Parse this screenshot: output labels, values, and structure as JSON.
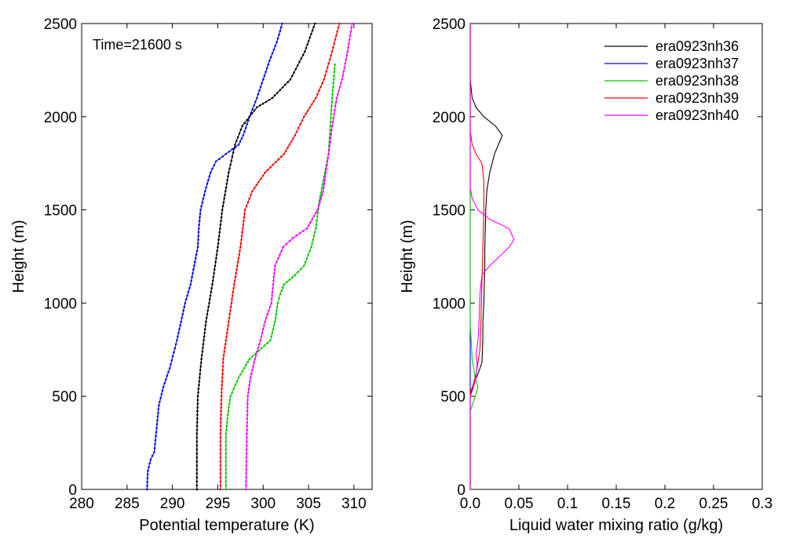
{
  "chart_data": [
    {
      "type": "line",
      "xlabel": "Potential temperature (K)",
      "ylabel": "Height (m)",
      "annotation": "Time=21600 s",
      "xlim": [
        280,
        312
      ],
      "ylim": [
        0,
        2500
      ],
      "xticks": [
        280,
        285,
        290,
        295,
        300,
        305,
        310
      ],
      "yticks": [
        0,
        500,
        1000,
        1500,
        2000,
        2500
      ],
      "markers": true,
      "series": [
        {
          "color": "#0000ff",
          "points": [
            [
              287.2,
              0
            ],
            [
              287.3,
              100
            ],
            [
              287.6,
              160
            ],
            [
              288.0,
              200
            ],
            [
              288.3,
              350
            ],
            [
              288.5,
              450
            ],
            [
              289.0,
              550
            ],
            [
              289.7,
              650
            ],
            [
              290.5,
              800
            ],
            [
              291.4,
              1000
            ],
            [
              292.0,
              1100
            ],
            [
              292.4,
              1200
            ],
            [
              292.8,
              1300
            ],
            [
              292.9,
              1400
            ],
            [
              293.1,
              1500
            ],
            [
              293.6,
              1600
            ],
            [
              294.2,
              1700
            ],
            [
              294.8,
              1760
            ],
            [
              295.9,
              1800
            ],
            [
              297.3,
              1850
            ],
            [
              297.8,
              1900
            ],
            [
              298.5,
              2000
            ],
            [
              299.3,
              2100
            ],
            [
              300.0,
              2200
            ],
            [
              300.7,
              2300
            ],
            [
              301.5,
              2400
            ],
            [
              302.1,
              2500
            ]
          ]
        },
        {
          "color": "#000000",
          "points": [
            [
              292.7,
              0
            ],
            [
              292.7,
              300
            ],
            [
              292.8,
              500
            ],
            [
              293.2,
              700
            ],
            [
              293.7,
              900
            ],
            [
              294.4,
              1100
            ],
            [
              295.0,
              1300
            ],
            [
              295.5,
              1500
            ],
            [
              296.2,
              1700
            ],
            [
              296.9,
              1850
            ],
            [
              297.7,
              1950
            ],
            [
              299.3,
              2050
            ],
            [
              301.0,
              2100
            ],
            [
              303.0,
              2200
            ],
            [
              304.6,
              2350
            ],
            [
              305.7,
              2500
            ]
          ]
        },
        {
          "color": "#ff0000",
          "points": [
            [
              295.3,
              0
            ],
            [
              295.3,
              300
            ],
            [
              295.4,
              500
            ],
            [
              295.6,
              700
            ],
            [
              296.2,
              900
            ],
            [
              296.8,
              1100
            ],
            [
              297.5,
              1300
            ],
            [
              298.0,
              1500
            ],
            [
              298.8,
              1600
            ],
            [
              300.2,
              1700
            ],
            [
              302.3,
              1800
            ],
            [
              303.5,
              1900
            ],
            [
              304.5,
              2000
            ],
            [
              305.8,
              2100
            ],
            [
              306.7,
              2200
            ],
            [
              307.6,
              2350
            ],
            [
              308.4,
              2500
            ]
          ]
        },
        {
          "color": "#00cc00",
          "points": [
            [
              295.9,
              0
            ],
            [
              295.9,
              300
            ],
            [
              296.1,
              400
            ],
            [
              296.4,
              500
            ],
            [
              297.3,
              600
            ],
            [
              298.5,
              700
            ],
            [
              300.8,
              800
            ],
            [
              301.3,
              900
            ],
            [
              301.6,
              1000
            ],
            [
              301.9,
              1050
            ],
            [
              302.3,
              1100
            ],
            [
              303.5,
              1150
            ],
            [
              304.5,
              1200
            ],
            [
              305.3,
              1300
            ],
            [
              305.8,
              1400
            ],
            [
              306.2,
              1550
            ],
            [
              306.8,
              1700
            ],
            [
              307.2,
              1800
            ],
            [
              307.4,
              1950
            ],
            [
              307.6,
              2100
            ],
            [
              307.9,
              2280
            ]
          ]
        },
        {
          "color": "#ff00ff",
          "points": [
            [
              298.1,
              0
            ],
            [
              298.2,
              300
            ],
            [
              298.3,
              500
            ],
            [
              298.6,
              600
            ],
            [
              299.1,
              700
            ],
            [
              299.7,
              800
            ],
            [
              300.2,
              900
            ],
            [
              300.9,
              1000
            ],
            [
              301.3,
              1200
            ],
            [
              302.2,
              1300
            ],
            [
              303.3,
              1350
            ],
            [
              304.8,
              1400
            ],
            [
              306.0,
              1500
            ],
            [
              306.6,
              1600
            ],
            [
              307.2,
              1800
            ],
            [
              307.6,
              1950
            ],
            [
              308.1,
              2100
            ],
            [
              308.7,
              2200
            ],
            [
              309.3,
              2350
            ],
            [
              309.8,
              2500
            ]
          ]
        }
      ]
    },
    {
      "type": "line",
      "xlabel": "Liquid water mixing ratio (g/kg)",
      "ylabel": "Height (m)",
      "xlim": [
        0,
        0.3
      ],
      "ylim": [
        0,
        2500
      ],
      "xticks": [
        "0.0",
        "0.05",
        "0.1",
        "0.15",
        "0.2",
        "0.25",
        "0.3"
      ],
      "xtick_values": [
        0,
        0.05,
        0.1,
        0.15,
        0.2,
        0.25,
        0.3
      ],
      "yticks": [
        0,
        500,
        1000,
        1500,
        2000,
        2500
      ],
      "markers": false,
      "legend_position": "top-right",
      "series": [
        {
          "name": "era0923nh36",
          "color": "#000000",
          "points": [
            [
              0,
              0
            ],
            [
              0,
              500
            ],
            [
              0.003,
              560
            ],
            [
              0.008,
              620
            ],
            [
              0.012,
              680
            ],
            [
              0.013,
              800
            ],
            [
              0.013,
              900
            ],
            [
              0.014,
              1000
            ],
            [
              0.015,
              1200
            ],
            [
              0.015,
              1300
            ],
            [
              0.016,
              1500
            ],
            [
              0.017,
              1600
            ],
            [
              0.02,
              1700
            ],
            [
              0.025,
              1800
            ],
            [
              0.033,
              1900
            ],
            [
              0.026,
              1950
            ],
            [
              0.014,
              2000
            ],
            [
              0.006,
              2050
            ],
            [
              0.002,
              2100
            ],
            [
              0.001,
              2150
            ],
            [
              0,
              2200
            ],
            [
              0,
              2500
            ]
          ]
        },
        {
          "name": "era0923nh37",
          "color": "#0000ff",
          "points": [
            [
              0,
              0
            ],
            [
              0,
              2500
            ]
          ]
        },
        {
          "name": "era0923nh38",
          "color": "#00cc00",
          "points": [
            [
              0,
              0
            ],
            [
              0,
              420
            ],
            [
              0.002,
              450
            ],
            [
              0.005,
              500
            ],
            [
              0.008,
              550
            ],
            [
              0.005,
              600
            ],
            [
              0.002,
              700
            ],
            [
              0.001,
              800
            ],
            [
              0,
              880
            ],
            [
              0,
              1000
            ],
            [
              0,
              1500
            ],
            [
              0,
              1640
            ],
            [
              0,
              2500
            ]
          ]
        },
        {
          "name": "era0923nh39",
          "color": "#ff0000",
          "points": [
            [
              0,
              0
            ],
            [
              0,
              520
            ],
            [
              0.003,
              560
            ],
            [
              0.006,
              620
            ],
            [
              0.008,
              680
            ],
            [
              0.01,
              750
            ],
            [
              0.011,
              900
            ],
            [
              0.012,
              1100
            ],
            [
              0.013,
              1300
            ],
            [
              0.014,
              1500
            ],
            [
              0.014,
              1650
            ],
            [
              0.012,
              1750
            ],
            [
              0.006,
              1800
            ],
            [
              0.002,
              1850
            ],
            [
              0,
              1920
            ],
            [
              0,
              2500
            ]
          ]
        },
        {
          "name": "era0923nh40",
          "color": "#ff00ff",
          "points": [
            [
              0,
              0
            ],
            [
              0,
              500
            ],
            [
              0.003,
              540
            ],
            [
              0.006,
              600
            ],
            [
              0.007,
              680
            ],
            [
              0.006,
              720
            ],
            [
              0.008,
              800
            ],
            [
              0.009,
              900
            ],
            [
              0.01,
              1050
            ],
            [
              0.012,
              1150
            ],
            [
              0.02,
              1200
            ],
            [
              0.03,
              1250
            ],
            [
              0.04,
              1300
            ],
            [
              0.045,
              1340
            ],
            [
              0.04,
              1400
            ],
            [
              0.02,
              1450
            ],
            [
              0.008,
              1500
            ],
            [
              0.002,
              1560
            ],
            [
              0,
              1620
            ],
            [
              0,
              2500
            ]
          ]
        }
      ]
    }
  ]
}
